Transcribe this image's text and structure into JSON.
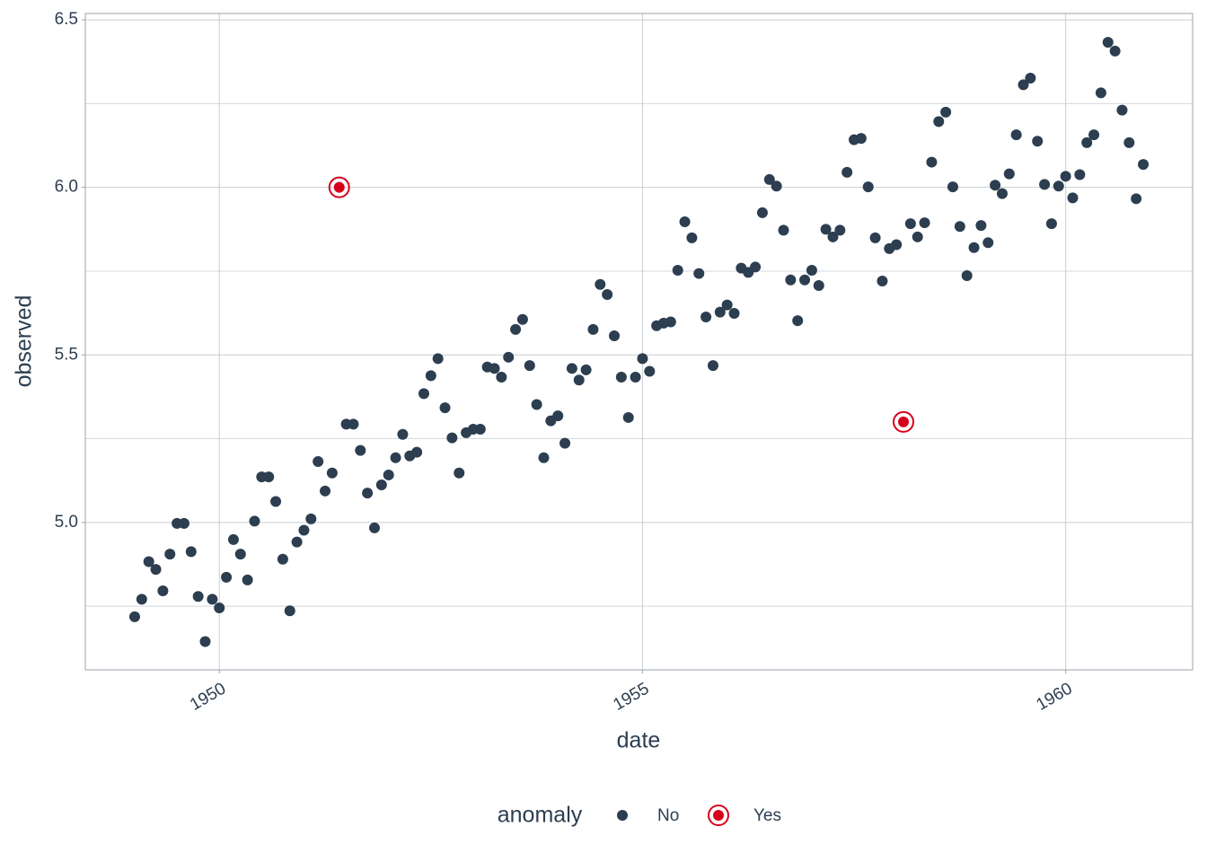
{
  "chart_data": {
    "type": "scatter",
    "xlabel": "date",
    "ylabel": "observed",
    "legend_title": "anomaly",
    "legend_position": "bottom",
    "xlim": [
      "1948-06",
      "1961-07"
    ],
    "xticks": [
      1950,
      1955,
      1960
    ],
    "ylim": [
      4.56,
      6.519
    ],
    "yticks": [
      {
        "value": 5,
        "label": "5.0"
      },
      5.5,
      {
        "value": 6,
        "label": "6.0"
      },
      6.5
    ],
    "y_minor_grid": [
      4.75,
      5.25,
      5.75,
      6.25
    ],
    "grid": true,
    "series": [
      {
        "name": "No",
        "color": "#2c3e50",
        "marker": "dot",
        "x": [
          "1949-01",
          "1949-02",
          "1949-03",
          "1949-04",
          "1949-05",
          "1949-06",
          "1949-07",
          "1949-08",
          "1949-09",
          "1949-10",
          "1949-11",
          "1949-12",
          "1950-01",
          "1950-02",
          "1950-03",
          "1950-04",
          "1950-05",
          "1950-06",
          "1950-07",
          "1950-08",
          "1950-09",
          "1950-10",
          "1950-11",
          "1950-12",
          "1951-01",
          "1951-02",
          "1951-03",
          "1951-04",
          "1951-05",
          "1951-07",
          "1951-08",
          "1951-09",
          "1951-10",
          "1951-11",
          "1951-12",
          "1952-01",
          "1952-02",
          "1952-03",
          "1952-04",
          "1952-05",
          "1952-06",
          "1952-07",
          "1952-08",
          "1952-09",
          "1952-10",
          "1952-11",
          "1952-12",
          "1953-01",
          "1953-02",
          "1953-03",
          "1953-04",
          "1953-05",
          "1953-06",
          "1953-07",
          "1953-08",
          "1953-09",
          "1953-10",
          "1953-11",
          "1953-12",
          "1954-01",
          "1954-02",
          "1954-03",
          "1954-04",
          "1954-05",
          "1954-06",
          "1954-07",
          "1954-08",
          "1954-09",
          "1954-10",
          "1954-11",
          "1954-12",
          "1955-01",
          "1955-02",
          "1955-03",
          "1955-04",
          "1955-05",
          "1955-06",
          "1955-07",
          "1955-08",
          "1955-09",
          "1955-10",
          "1955-11",
          "1955-12",
          "1956-01",
          "1956-02",
          "1956-03",
          "1956-04",
          "1956-05",
          "1956-06",
          "1956-07",
          "1956-08",
          "1956-09",
          "1956-10",
          "1956-11",
          "1956-12",
          "1957-01",
          "1957-02",
          "1957-03",
          "1957-04",
          "1957-05",
          "1957-06",
          "1957-07",
          "1957-08",
          "1957-09",
          "1957-10",
          "1957-11",
          "1957-12",
          "1958-01",
          "1958-03",
          "1958-04",
          "1958-05",
          "1958-06",
          "1958-07",
          "1958-08",
          "1958-09",
          "1958-10",
          "1958-11",
          "1958-12",
          "1959-01",
          "1959-02",
          "1959-03",
          "1959-04",
          "1959-05",
          "1959-06",
          "1959-07",
          "1959-08",
          "1959-09",
          "1959-10",
          "1959-11",
          "1959-12",
          "1960-01",
          "1960-02",
          "1960-03",
          "1960-04",
          "1960-05",
          "1960-06",
          "1960-07",
          "1960-08",
          "1960-09",
          "1960-10",
          "1960-11",
          "1960-12"
        ],
        "values": [
          4.7185,
          4.7707,
          4.8828,
          4.8598,
          4.7958,
          4.9053,
          4.9972,
          4.9972,
          4.9127,
          4.7791,
          4.6444,
          4.7707,
          4.7449,
          4.8363,
          4.9488,
          4.9053,
          4.8283,
          5.0039,
          5.1358,
          5.1358,
          5.0626,
          4.8903,
          4.7362,
          4.9416,
          4.9767,
          5.0106,
          5.1818,
          5.0938,
          5.1475,
          5.2933,
          5.2933,
          5.2149,
          5.0876,
          4.9836,
          5.112,
          5.1417,
          5.193,
          5.2627,
          5.1985,
          5.2095,
          5.3845,
          5.4381,
          5.4889,
          5.3423,
          5.2523,
          5.1475,
          5.2679,
          5.2781,
          5.2781,
          5.4638,
          5.4596,
          5.4337,
          5.4931,
          5.5759,
          5.6058,
          5.4681,
          5.3519,
          5.193,
          5.3033,
          5.3181,
          5.2364,
          5.4596,
          5.425,
          5.4553,
          5.5759,
          5.7104,
          5.6802,
          5.5568,
          5.4337,
          5.3132,
          5.4337,
          5.4889,
          5.451,
          5.5872,
          5.5947,
          5.5984,
          5.7526,
          5.8972,
          5.8493,
          5.743,
          5.6131,
          5.4681,
          5.6276,
          5.649,
          5.624,
          5.7589,
          5.7462,
          5.7621,
          5.9243,
          6.0234,
          6.0039,
          5.8721,
          5.7236,
          5.6021,
          5.7236,
          5.7526,
          5.7071,
          5.8749,
          5.8522,
          5.8721,
          6.045,
          6.142,
          6.1463,
          6.0014,
          5.8493,
          5.7203,
          5.8171,
          5.8289,
          5.8916,
          5.8522,
          5.8944,
          6.0753,
          6.1964,
          6.2246,
          6.0014,
          5.8833,
          5.7366,
          5.8201,
          5.8861,
          5.8348,
          6.0064,
          5.9814,
          6.0403,
          6.157,
          6.3063,
          6.3261,
          6.1377,
          6.0088,
          5.8916,
          6.0039,
          6.0331,
          5.9687,
          6.0379,
          6.1334,
          6.157,
          6.2823,
          6.4329,
          6.4069,
          6.2305,
          6.1334,
          5.9661,
          6.0684
        ]
      },
      {
        "name": "Yes",
        "color": "#d7001a",
        "marker": "ringed-dot",
        "x": [
          "1951-06",
          "1958-02"
        ],
        "values": [
          6.0,
          5.3
        ]
      }
    ]
  }
}
